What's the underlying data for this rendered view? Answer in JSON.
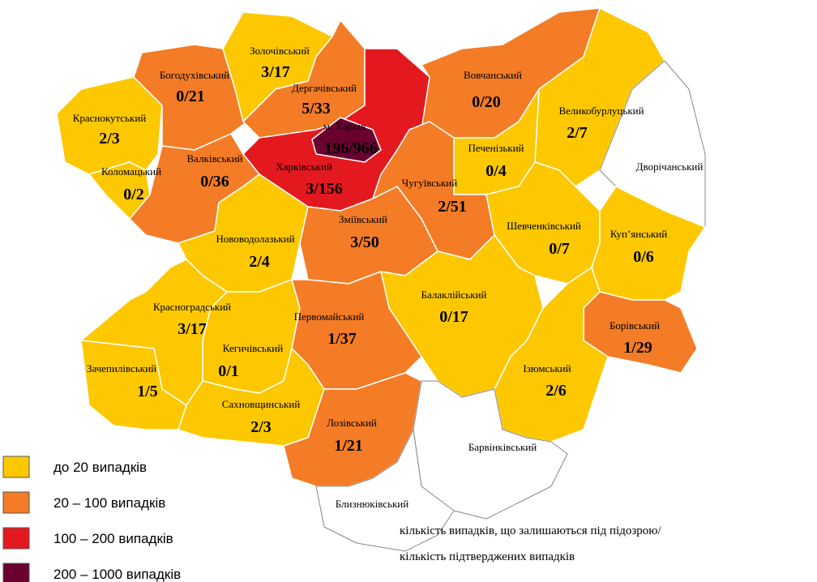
{
  "regions": [
    {
      "name": "Краснокутський",
      "value": "2/3"
    },
    {
      "name": "Богодухівський",
      "value": "0/21"
    },
    {
      "name": "Золочівський",
      "value": "3/17"
    },
    {
      "name": "Дергачівський",
      "value": "5/33"
    },
    {
      "name": "Харківський",
      "value": "3/156"
    },
    {
      "name": "Вовчанський",
      "value": "0/20"
    },
    {
      "name": "Великобурлуцький",
      "value": "2/7"
    },
    {
      "name": "Дворічанський"
    },
    {
      "name": "Печенізький",
      "value": "0/4"
    },
    {
      "name": "Чугуївський",
      "value": "2/51"
    },
    {
      "name": "Валківський",
      "value": "0/36"
    },
    {
      "name": "Коломацький",
      "value": "0/2"
    },
    {
      "name": "Нововодолазький",
      "value": "2/4"
    },
    {
      "name": "Зміївський",
      "value": "3/50"
    },
    {
      "name": "Шевченківський",
      "value": "0/7"
    },
    {
      "name": "Куп’янський",
      "value": "0/6"
    },
    {
      "name": "Борівський",
      "value": "1/29"
    },
    {
      "name": "Балаклійський",
      "value": "0/17"
    },
    {
      "name": "Ізюмський",
      "value": "2/6"
    },
    {
      "name": "Красноградський",
      "value": "3/17"
    },
    {
      "name": "Зачепилівський",
      "value": "1/5"
    },
    {
      "name": "Кегичівський",
      "value": "0/1"
    },
    {
      "name": "Первомайський",
      "value": "1/37"
    },
    {
      "name": "Сахновщинський",
      "value": "2/3"
    },
    {
      "name": "Лозівський",
      "value": "1/21"
    },
    {
      "name": "Барвінківський"
    },
    {
      "name": "Близнюківський"
    },
    {
      "name": "м. Харків",
      "value": "196/966"
    }
  ],
  "legend": [
    {
      "label": "до 20  випадків",
      "color": "#fdc800"
    },
    {
      "label": "20 – 100  випадків",
      "color": "#f47c26"
    },
    {
      "label": "100 – 200  випадків",
      "color": "#e3191f"
    },
    {
      "label": "200 – 1000  випадків",
      "color": "#6a0030"
    }
  ],
  "note": [
    "кількість випадків, що залишаються під підозрою/",
    "кількість підтверджених випадків"
  ]
}
